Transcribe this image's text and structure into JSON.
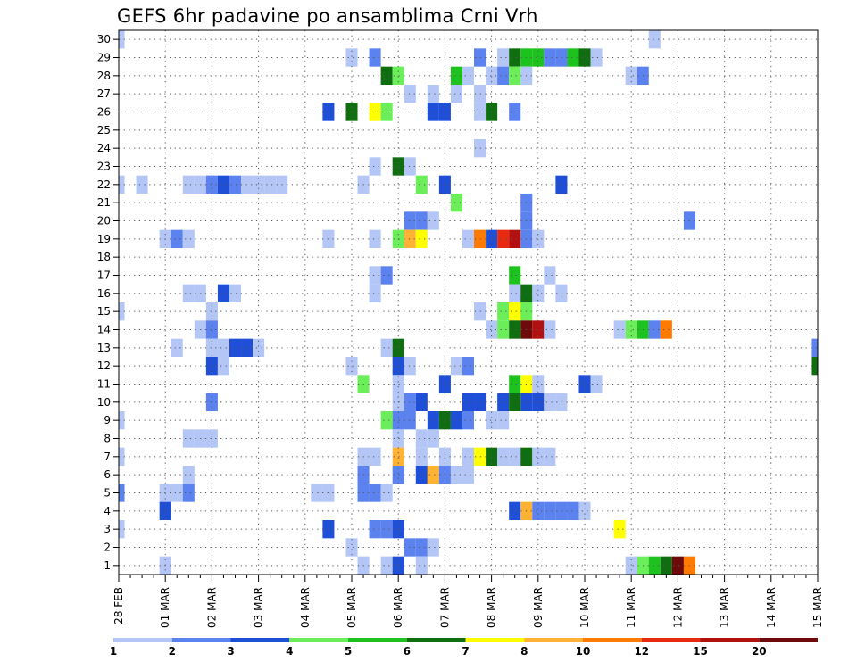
{
  "chart_data": {
    "type": "heatmap",
    "title": "GEFS 6hr padavine po ansamblima Crni Vrh",
    "xlabel": "",
    "ylabel": "",
    "x_ticks": [
      "28 FEB",
      "01 MAR",
      "02 MAR",
      "03 MAR",
      "04 MAR",
      "05 MAR",
      "06 MAR",
      "07 MAR",
      "08 MAR",
      "09 MAR",
      "10 MAR",
      "11 MAR",
      "12 MAR",
      "13 MAR",
      "14 MAR",
      "15 MAR"
    ],
    "y_ticks": [
      1,
      2,
      3,
      4,
      5,
      6,
      7,
      8,
      9,
      10,
      11,
      12,
      13,
      14,
      15,
      16,
      17,
      18,
      19,
      20,
      21,
      22,
      23,
      24,
      25,
      26,
      27,
      28,
      29,
      30
    ],
    "xlim": [
      0,
      60
    ],
    "ylim": [
      0.5,
      30.5
    ],
    "grid": true,
    "colorbar": {
      "labels": [
        "1",
        "2",
        "3",
        "4",
        "5",
        "6",
        "7",
        "8",
        "10",
        "12",
        "15",
        "20"
      ],
      "colors": [
        "#b3c6f5",
        "#5b82ee",
        "#1f4fd6",
        "#6bee5a",
        "#1ec21e",
        "#0f6e0f",
        "#ffff00",
        "#ffb233",
        "#ff7a00",
        "#e82a10",
        "#b31010",
        "#6e0a0a"
      ]
    },
    "cells": [
      [
        0,
        1,
        30
      ],
      [
        20,
        1,
        29
      ],
      [
        22,
        2,
        29
      ],
      [
        31,
        2,
        29
      ],
      [
        33,
        1,
        29
      ],
      [
        34,
        6,
        29
      ],
      [
        35,
        5,
        29
      ],
      [
        36,
        5,
        29
      ],
      [
        37,
        2,
        29
      ],
      [
        38,
        2,
        29
      ],
      [
        39,
        5,
        29
      ],
      [
        40,
        6,
        29
      ],
      [
        41,
        1,
        29
      ],
      [
        46,
        1,
        30
      ],
      [
        23,
        6,
        28
      ],
      [
        24,
        4,
        28
      ],
      [
        29,
        5,
        28
      ],
      [
        30,
        1,
        28
      ],
      [
        32,
        1,
        28
      ],
      [
        33,
        2,
        28
      ],
      [
        34,
        4,
        28
      ],
      [
        35,
        1,
        28
      ],
      [
        44,
        1,
        28
      ],
      [
        45,
        2,
        28
      ],
      [
        25,
        1,
        27
      ],
      [
        27,
        1,
        27
      ],
      [
        29,
        1,
        27
      ],
      [
        31,
        1,
        27
      ],
      [
        18,
        3,
        26
      ],
      [
        20,
        6,
        26
      ],
      [
        22,
        7,
        26
      ],
      [
        23,
        4,
        26
      ],
      [
        27,
        3,
        26
      ],
      [
        28,
        3,
        26
      ],
      [
        31,
        1,
        26
      ],
      [
        32,
        6,
        26
      ],
      [
        34,
        2,
        26
      ],
      [
        31,
        1,
        24
      ],
      [
        22,
        1,
        23
      ],
      [
        24,
        6,
        23
      ],
      [
        25,
        1,
        23
      ],
      [
        0,
        1,
        22
      ],
      [
        2,
        1,
        22
      ],
      [
        6,
        1,
        22
      ],
      [
        7,
        1,
        22
      ],
      [
        8,
        2,
        22
      ],
      [
        9,
        3,
        22
      ],
      [
        10,
        2,
        22
      ],
      [
        11,
        1,
        22
      ],
      [
        12,
        1,
        22
      ],
      [
        13,
        1,
        22
      ],
      [
        14,
        1,
        22
      ],
      [
        21,
        1,
        22
      ],
      [
        26,
        4,
        22
      ],
      [
        28,
        3,
        22
      ],
      [
        38,
        3,
        22
      ],
      [
        29,
        4,
        21
      ],
      [
        35,
        2,
        21
      ],
      [
        25,
        2,
        20
      ],
      [
        26,
        2,
        20
      ],
      [
        27,
        1,
        20
      ],
      [
        35,
        2,
        20
      ],
      [
        49,
        2,
        20
      ],
      [
        4,
        1,
        19
      ],
      [
        5,
        2,
        19
      ],
      [
        6,
        1,
        19
      ],
      [
        18,
        1,
        19
      ],
      [
        22,
        1,
        19
      ],
      [
        24,
        4,
        19
      ],
      [
        25,
        8,
        19
      ],
      [
        26,
        7,
        19
      ],
      [
        30,
        1,
        19
      ],
      [
        31,
        9,
        19
      ],
      [
        32,
        3,
        19
      ],
      [
        33,
        10,
        19
      ],
      [
        34,
        11,
        19
      ],
      [
        35,
        2,
        19
      ],
      [
        36,
        1,
        19
      ],
      [
        22,
        1,
        17
      ],
      [
        23,
        2,
        17
      ],
      [
        34,
        5,
        17
      ],
      [
        37,
        1,
        17
      ],
      [
        6,
        1,
        16
      ],
      [
        7,
        1,
        16
      ],
      [
        9,
        3,
        16
      ],
      [
        10,
        1,
        16
      ],
      [
        22,
        1,
        16
      ],
      [
        34,
        1,
        16
      ],
      [
        35,
        6,
        16
      ],
      [
        36,
        1,
        16
      ],
      [
        38,
        1,
        16
      ],
      [
        0,
        1,
        15
      ],
      [
        8,
        1,
        15
      ],
      [
        31,
        1,
        15
      ],
      [
        33,
        4,
        15
      ],
      [
        34,
        7,
        15
      ],
      [
        35,
        4,
        15
      ],
      [
        7,
        1,
        14
      ],
      [
        8,
        2,
        14
      ],
      [
        32,
        1,
        14
      ],
      [
        33,
        4,
        14
      ],
      [
        34,
        6,
        14
      ],
      [
        35,
        12,
        14
      ],
      [
        36,
        11,
        14
      ],
      [
        37,
        1,
        14
      ],
      [
        43,
        1,
        14
      ],
      [
        44,
        4,
        14
      ],
      [
        45,
        5,
        14
      ],
      [
        46,
        2,
        14
      ],
      [
        47,
        9,
        14
      ],
      [
        5,
        1,
        13
      ],
      [
        8,
        1,
        13
      ],
      [
        9,
        1,
        13
      ],
      [
        10,
        3,
        13
      ],
      [
        11,
        3,
        13
      ],
      [
        12,
        1,
        13
      ],
      [
        23,
        1,
        13
      ],
      [
        24,
        6,
        13
      ],
      [
        60,
        2,
        13
      ],
      [
        8,
        3,
        12
      ],
      [
        9,
        1,
        12
      ],
      [
        20,
        1,
        12
      ],
      [
        24,
        3,
        12
      ],
      [
        25,
        1,
        12
      ],
      [
        29,
        1,
        12
      ],
      [
        30,
        2,
        12
      ],
      [
        60,
        6,
        12
      ],
      [
        21,
        4,
        11
      ],
      [
        24,
        1,
        11
      ],
      [
        28,
        3,
        11
      ],
      [
        34,
        5,
        11
      ],
      [
        35,
        7,
        11
      ],
      [
        36,
        1,
        11
      ],
      [
        40,
        3,
        11
      ],
      [
        41,
        1,
        11
      ],
      [
        8,
        2,
        10
      ],
      [
        24,
        1,
        10
      ],
      [
        25,
        2,
        10
      ],
      [
        26,
        3,
        10
      ],
      [
        30,
        3,
        10
      ],
      [
        31,
        3,
        10
      ],
      [
        33,
        3,
        10
      ],
      [
        34,
        6,
        10
      ],
      [
        35,
        3,
        10
      ],
      [
        36,
        3,
        10
      ],
      [
        37,
        1,
        10
      ],
      [
        38,
        1,
        10
      ],
      [
        0,
        1,
        9
      ],
      [
        23,
        4,
        9
      ],
      [
        24,
        2,
        9
      ],
      [
        25,
        2,
        9
      ],
      [
        27,
        3,
        9
      ],
      [
        28,
        6,
        9
      ],
      [
        29,
        3,
        9
      ],
      [
        30,
        2,
        9
      ],
      [
        32,
        1,
        9
      ],
      [
        33,
        1,
        9
      ],
      [
        6,
        1,
        8
      ],
      [
        7,
        1,
        8
      ],
      [
        8,
        1,
        8
      ],
      [
        24,
        1,
        8
      ],
      [
        26,
        1,
        8
      ],
      [
        27,
        1,
        8
      ],
      [
        0,
        1,
        7
      ],
      [
        21,
        1,
        7
      ],
      [
        22,
        1,
        7
      ],
      [
        24,
        8,
        7
      ],
      [
        26,
        1,
        7
      ],
      [
        28,
        1,
        7
      ],
      [
        30,
        1,
        7
      ],
      [
        31,
        7,
        7
      ],
      [
        32,
        6,
        7
      ],
      [
        33,
        1,
        7
      ],
      [
        34,
        1,
        7
      ],
      [
        35,
        6,
        7
      ],
      [
        36,
        1,
        7
      ],
      [
        37,
        1,
        7
      ],
      [
        6,
        1,
        6
      ],
      [
        21,
        2,
        6
      ],
      [
        24,
        2,
        6
      ],
      [
        26,
        3,
        6
      ],
      [
        27,
        8,
        6
      ],
      [
        28,
        2,
        6
      ],
      [
        29,
        1,
        6
      ],
      [
        30,
        1,
        6
      ],
      [
        0,
        2,
        5
      ],
      [
        4,
        1,
        5
      ],
      [
        5,
        1,
        5
      ],
      [
        6,
        2,
        5
      ],
      [
        17,
        1,
        5
      ],
      [
        18,
        1,
        5
      ],
      [
        21,
        2,
        5
      ],
      [
        22,
        2,
        5
      ],
      [
        23,
        1,
        5
      ],
      [
        4,
        3,
        4
      ],
      [
        34,
        3,
        4
      ],
      [
        35,
        8,
        4
      ],
      [
        36,
        2,
        4
      ],
      [
        37,
        2,
        4
      ],
      [
        38,
        2,
        4
      ],
      [
        39,
        2,
        4
      ],
      [
        40,
        1,
        4
      ],
      [
        0,
        1,
        3
      ],
      [
        18,
        3,
        3
      ],
      [
        22,
        2,
        3
      ],
      [
        23,
        2,
        3
      ],
      [
        24,
        3,
        3
      ],
      [
        43,
        7,
        3
      ],
      [
        20,
        1,
        2
      ],
      [
        25,
        2,
        2
      ],
      [
        26,
        2,
        2
      ],
      [
        27,
        1,
        2
      ],
      [
        4,
        1,
        1
      ],
      [
        21,
        1,
        1
      ],
      [
        23,
        1,
        1
      ],
      [
        24,
        3,
        1
      ],
      [
        26,
        1,
        1
      ],
      [
        44,
        1,
        1
      ],
      [
        45,
        4,
        1
      ],
      [
        46,
        5,
        1
      ],
      [
        47,
        6,
        1
      ],
      [
        48,
        12,
        1
      ],
      [
        49,
        9,
        1
      ]
    ]
  }
}
